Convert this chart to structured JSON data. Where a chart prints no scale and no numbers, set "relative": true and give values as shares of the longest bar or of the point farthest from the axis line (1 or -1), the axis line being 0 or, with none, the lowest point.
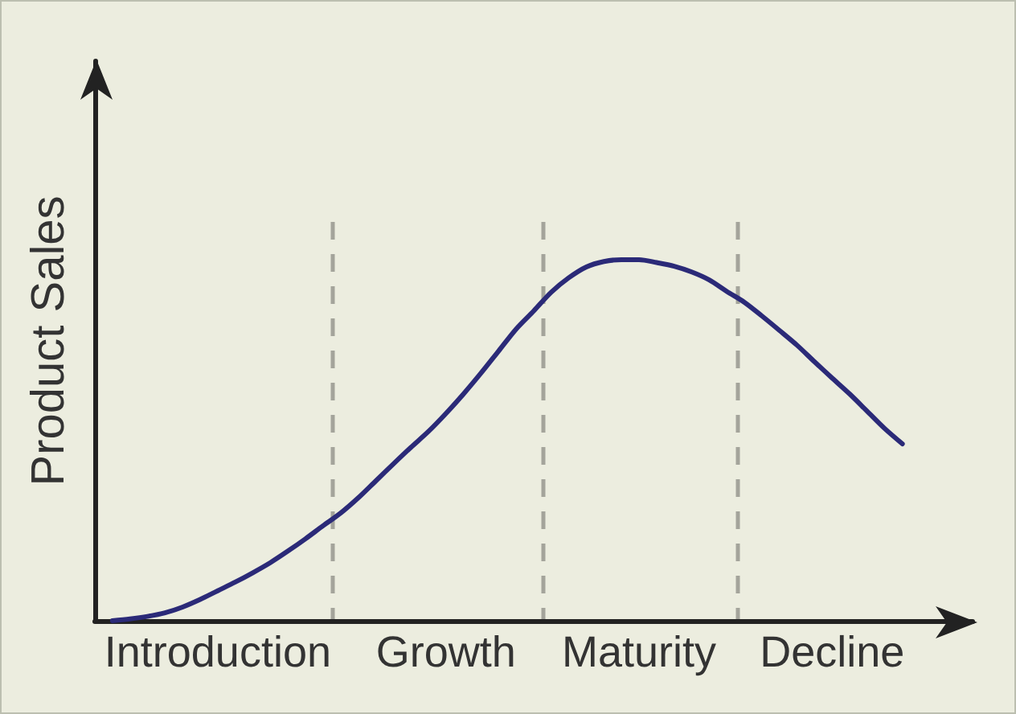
{
  "chart_data": {
    "type": "line",
    "ylabel": "Product Sales",
    "relative": true,
    "color": "#2b2a78",
    "categories": [
      null,
      null,
      null,
      null,
      null,
      null,
      null,
      "Introduction",
      null,
      null,
      null,
      null,
      null,
      null,
      null,
      null,
      null,
      null,
      null,
      null,
      "Growth",
      null,
      null,
      null,
      null,
      null,
      null,
      null,
      null,
      null,
      null,
      "Maturity",
      null,
      null,
      null,
      null,
      null,
      null,
      null,
      null,
      null,
      null,
      "Decline",
      null,
      null,
      null,
      null,
      null,
      null,
      null,
      null
    ],
    "values": [
      null,
      0,
      0.005,
      0.012,
      0.022,
      0.038,
      0.059,
      0.083,
      0.107,
      0.133,
      0.161,
      0.193,
      0.227,
      0.263,
      0.298,
      0.34,
      0.387,
      0.434,
      0.48,
      0.524,
      0.574,
      0.628,
      0.686,
      0.747,
      0.808,
      0.858,
      0.91,
      0.95,
      0.98,
      0.995,
      1,
      1,
      0.992,
      0.982,
      0.966,
      0.944,
      0.912,
      0.882,
      0.844,
      0.804,
      0.763,
      0.717,
      0.672,
      0.628,
      0.58,
      0.532,
      0.49,
      null,
      null,
      null,
      null
    ]
  }
}
